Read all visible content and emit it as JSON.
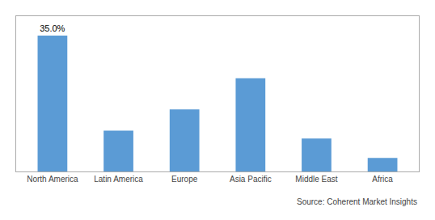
{
  "chart_data": {
    "type": "bar",
    "categories": [
      "North America",
      "Latin America",
      "Europe",
      "Asia Pacific",
      "Middle East",
      "Africa"
    ],
    "values": [
      35.0,
      10.5,
      16.0,
      24.0,
      8.5,
      3.5
    ],
    "value_labels": [
      "35.0%",
      null,
      null,
      null,
      null,
      null
    ],
    "data_labels": true,
    "color": "#5B9BD5",
    "ylim": [
      0,
      40
    ],
    "yticks": [],
    "tick_labels": "x",
    "grid": false,
    "annotations": [
      "Source: Coherent Market Insights"
    ]
  }
}
